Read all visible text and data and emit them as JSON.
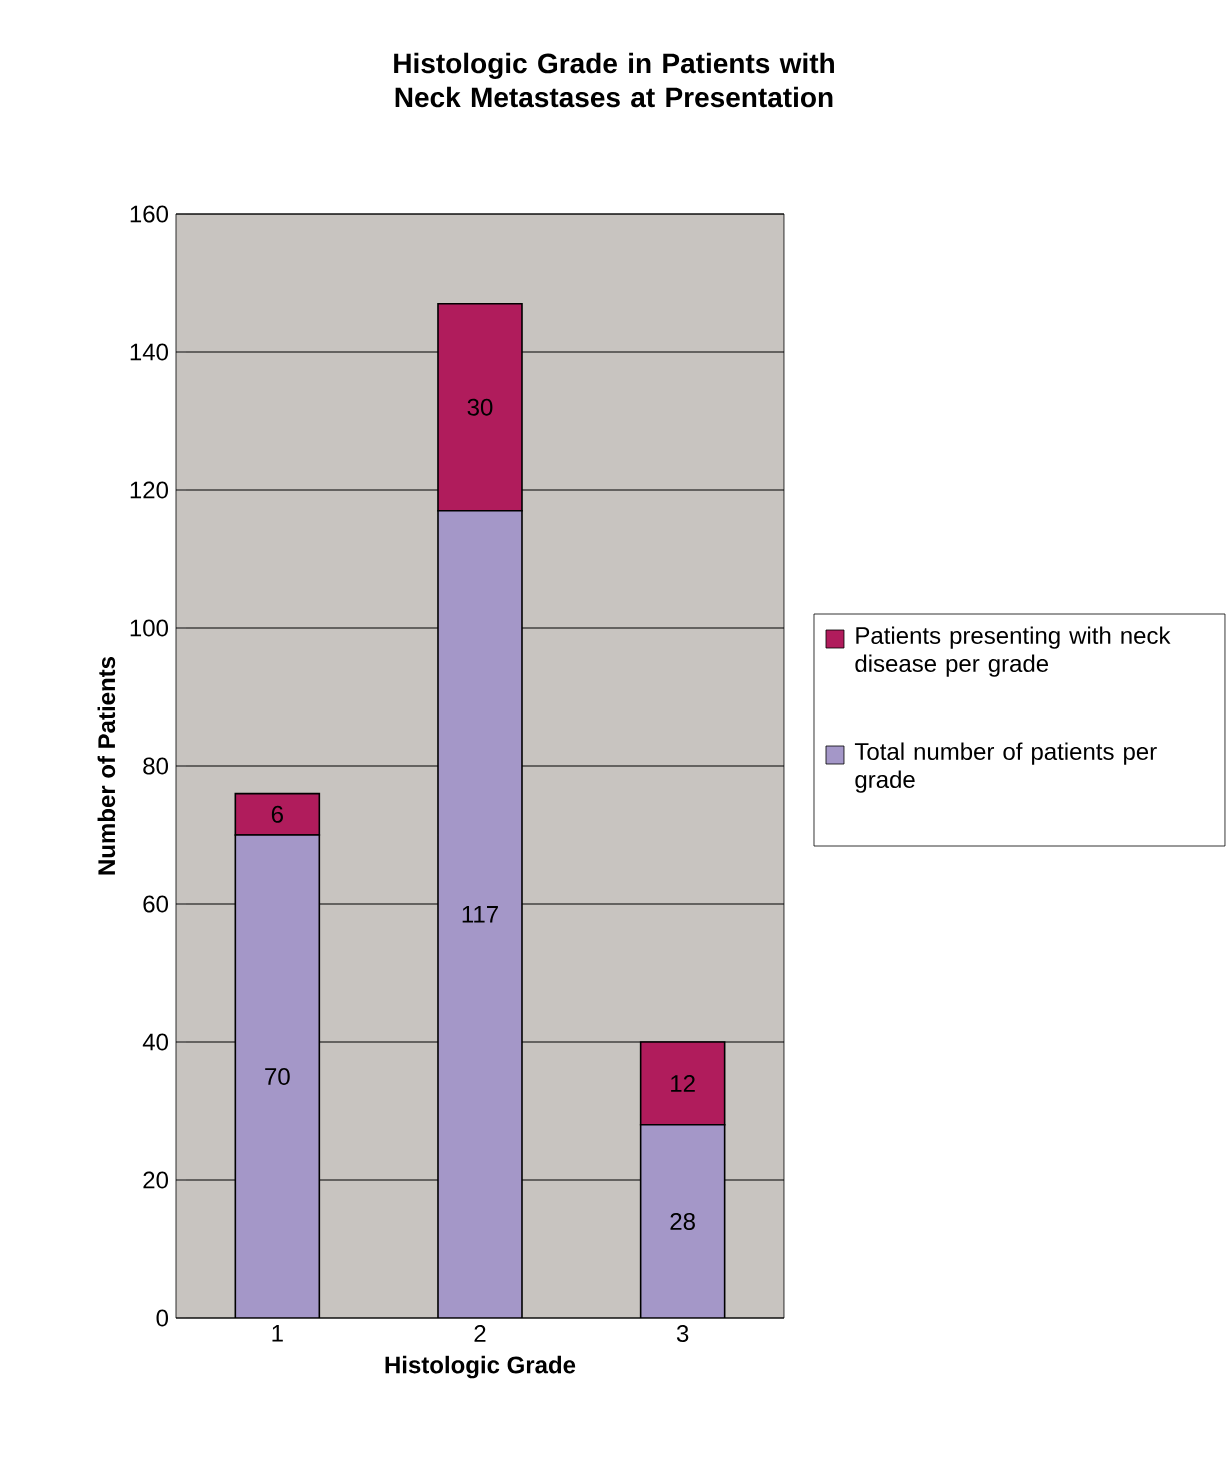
{
  "chart_data": {
    "type": "bar",
    "title": "Histologic Grade in Patients with Neck Metastases at Presentation",
    "xlabel": "Histologic Grade",
    "ylabel": "Number of Patients",
    "categories": [
      "1",
      "2",
      "3"
    ],
    "stacked": true,
    "data_labels": true,
    "grid": "y",
    "legend": "right",
    "ylim": [
      0,
      160
    ],
    "yticks": [
      0,
      20,
      40,
      60,
      80,
      100,
      120,
      140,
      160
    ],
    "series": [
      {
        "name": "Total number of patients per grade",
        "color": "#a497c8",
        "values": [
          70,
          117,
          28
        ]
      },
      {
        "name": "Patients presenting with neck disease per grade",
        "color": "#b01c5c",
        "values": [
          6,
          30,
          12
        ]
      }
    ]
  }
}
